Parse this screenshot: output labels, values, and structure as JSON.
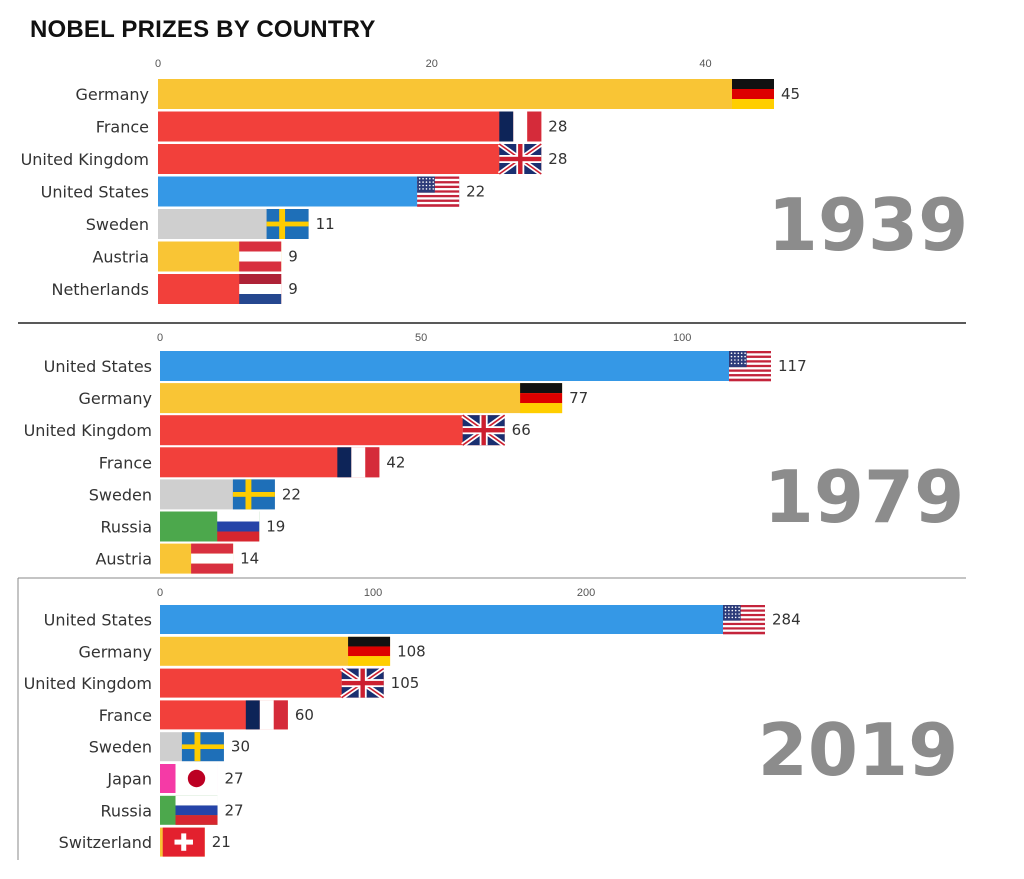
{
  "title": "NOBEL PRIZES BY COUNTRY",
  "colors": {
    "blue": "#3598e6",
    "yellow": "#f9c535",
    "red": "#f2403b",
    "grey": "#cfcfcf",
    "green": "#4ca84c",
    "pink": "#f53aa6",
    "year_text": "#8c8c8c"
  },
  "chart_data": [
    {
      "type": "bar",
      "orientation": "horizontal",
      "year_label": "1939",
      "xlim": [
        0,
        45
      ],
      "ticks": [
        0,
        20,
        40
      ],
      "categories": [
        "Germany",
        "France",
        "United Kingdom",
        "United States",
        "Sweden",
        "Austria",
        "Netherlands"
      ],
      "values": [
        45,
        28,
        28,
        22,
        11,
        9,
        9
      ],
      "bar_colors": [
        "yellow",
        "red",
        "red",
        "blue",
        "grey",
        "yellow",
        "red"
      ],
      "flags": [
        "germany-flag",
        "france-flag",
        "uk-flag",
        "us-flag",
        "sweden-flag",
        "austria-flag",
        "netherlands-flag"
      ]
    },
    {
      "type": "bar",
      "orientation": "horizontal",
      "year_label": "1979",
      "xlim": [
        0,
        117
      ],
      "ticks": [
        0,
        50,
        100
      ],
      "categories": [
        "United States",
        "Germany",
        "United Kingdom",
        "France",
        "Sweden",
        "Russia",
        "Austria"
      ],
      "values": [
        117,
        77,
        66,
        42,
        22,
        19,
        14
      ],
      "bar_colors": [
        "blue",
        "yellow",
        "red",
        "red",
        "grey",
        "green",
        "yellow"
      ],
      "flags": [
        "us-flag",
        "germany-flag",
        "uk-flag",
        "france-flag",
        "sweden-flag",
        "russia-flag",
        "austria-flag"
      ]
    },
    {
      "type": "bar",
      "orientation": "horizontal",
      "year_label": "2019",
      "xlim": [
        0,
        284
      ],
      "ticks": [
        0,
        100,
        200
      ],
      "categories": [
        "United States",
        "Germany",
        "United Kingdom",
        "France",
        "Sweden",
        "Japan",
        "Russia",
        "Switzerland"
      ],
      "values": [
        284,
        108,
        105,
        60,
        30,
        27,
        27,
        21
      ],
      "bar_colors": [
        "blue",
        "yellow",
        "red",
        "red",
        "grey",
        "pink",
        "green",
        "yellow"
      ],
      "flags": [
        "us-flag",
        "germany-flag",
        "uk-flag",
        "france-flag",
        "sweden-flag",
        "japan-flag",
        "russia-flag",
        "switzerland-flag"
      ]
    }
  ]
}
